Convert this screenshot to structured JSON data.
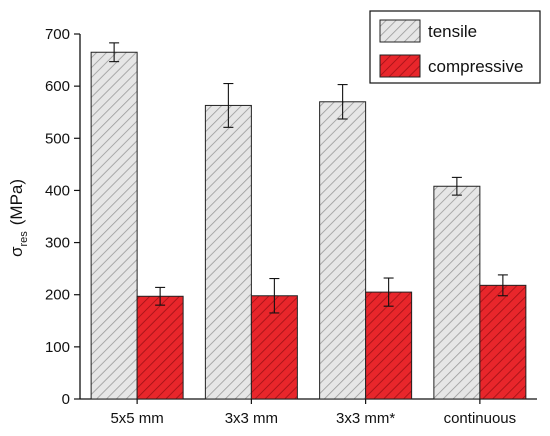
{
  "chart_data": {
    "type": "bar",
    "categories": [
      "5x5 mm",
      "3x3 mm",
      "3x3 mm*",
      "continuous"
    ],
    "series": [
      {
        "name": "tensile",
        "values": [
          665,
          563,
          570,
          408
        ],
        "error": [
          18,
          42,
          33,
          17
        ],
        "color": "#e6e6e6",
        "hatch_color": "#9a9a9a"
      },
      {
        "name": "compressive",
        "values": [
          197,
          198,
          205,
          218
        ],
        "error": [
          17,
          33,
          27,
          20
        ],
        "color": "#e8262b",
        "hatch_color": "#9e1015"
      }
    ],
    "ylabel_main": "σ",
    "ylabel_sub": "res",
    "ylabel_unit": "(MPa)",
    "xlabel": "",
    "ylim": [
      0,
      700
    ],
    "yticks": [
      0,
      100,
      200,
      300,
      400,
      500,
      600,
      700
    ],
    "legend_position": "top-right",
    "grid": false
  }
}
